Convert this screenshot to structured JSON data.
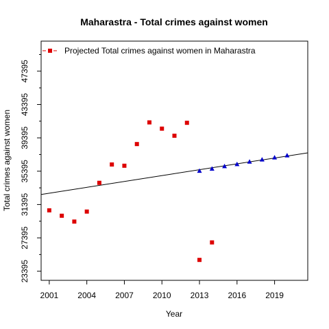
{
  "chart_data": {
    "type": "scatter",
    "title": "Maharastra  -  Total crimes against women",
    "xlabel": "Year",
    "ylabel": "Total crimes against women",
    "xlim": [
      2000.35,
      2021.65
    ],
    "ylim": [
      22300,
      51000
    ],
    "x_ticks": [
      2001,
      2004,
      2007,
      2010,
      2013,
      2016,
      2019
    ],
    "y_ticks": [
      23395,
      27395,
      31395,
      35395,
      39395,
      43395,
      47395
    ],
    "grid": false,
    "legend_position": "top-left",
    "legend": [
      {
        "label": "Projected  Total crimes against women  in  Maharastra",
        "color": "#dd0000",
        "marker": "square"
      }
    ],
    "series": [
      {
        "color": "#dd0000",
        "marker": "square",
        "points": [
          {
            "x": 2001,
            "y": 30700
          },
          {
            "x": 2002,
            "y": 30050
          },
          {
            "x": 2003,
            "y": 29350
          },
          {
            "x": 2004,
            "y": 30550
          },
          {
            "x": 2005,
            "y": 34000
          },
          {
            "x": 2006,
            "y": 36200
          },
          {
            "x": 2007,
            "y": 36050
          },
          {
            "x": 2008,
            "y": 38650
          },
          {
            "x": 2009,
            "y": 41250
          },
          {
            "x": 2010,
            "y": 40500
          },
          {
            "x": 2011,
            "y": 39650
          },
          {
            "x": 2012,
            "y": 41200
          },
          {
            "x": 2013,
            "y": 24750
          },
          {
            "x": 2014,
            "y": 26850
          }
        ]
      },
      {
        "color": "#0000cc",
        "marker": "triangle",
        "points": [
          {
            "x": 2013,
            "y": 35450
          },
          {
            "x": 2014,
            "y": 35700
          },
          {
            "x": 2015,
            "y": 36000
          },
          {
            "x": 2016,
            "y": 36250
          },
          {
            "x": 2017,
            "y": 36550
          },
          {
            "x": 2018,
            "y": 36800
          },
          {
            "x": 2019,
            "y": 37050
          },
          {
            "x": 2020,
            "y": 37300
          }
        ]
      }
    ],
    "trend_line": {
      "color": "#000000",
      "x": [
        2000.35,
        2021.65
      ],
      "y": [
        32600,
        37600
      ]
    }
  }
}
